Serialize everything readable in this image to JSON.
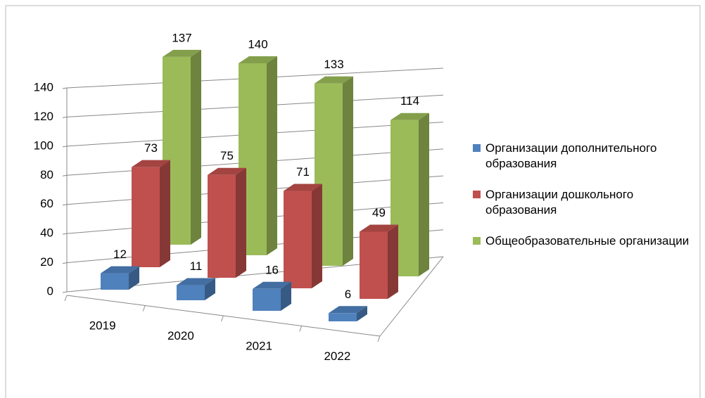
{
  "chart_data": {
    "type": "bar3d",
    "categories": [
      "2019",
      "2020",
      "2021",
      "2022"
    ],
    "series": [
      {
        "name": "Организации дополнительного образования",
        "color": "#4f81bd",
        "values": [
          12,
          11,
          16,
          6
        ]
      },
      {
        "name": "Организации дошкольного образования",
        "color": "#c0504d",
        "values": [
          73,
          75,
          71,
          49
        ]
      },
      {
        "name": "Общеобразовательные организации",
        "color": "#9bbb59",
        "values": [
          137,
          140,
          133,
          114
        ]
      }
    ],
    "ylim": [
      0,
      140
    ],
    "yticks": [
      0,
      20,
      40,
      60,
      80,
      100,
      120,
      140
    ],
    "grid": true,
    "legend": "right"
  }
}
